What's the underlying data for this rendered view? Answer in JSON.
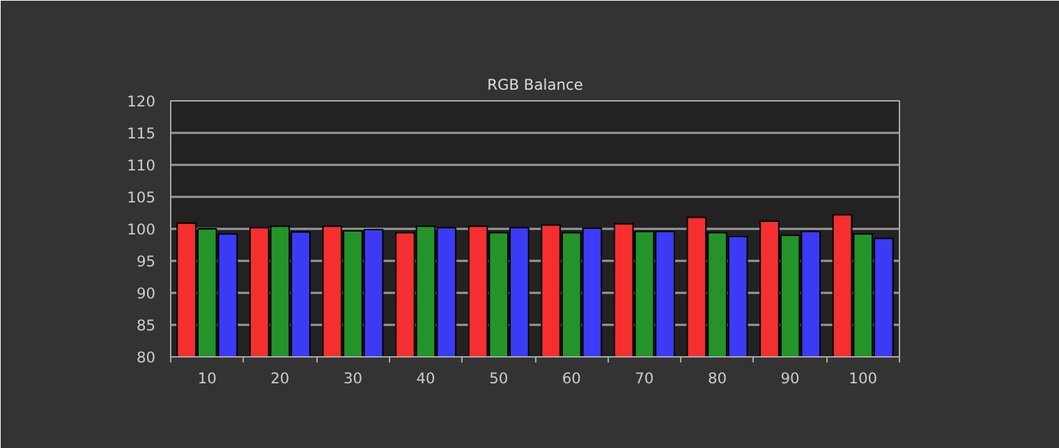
{
  "chart_data": {
    "type": "bar",
    "title": "RGB Balance",
    "categories": [
      "10",
      "20",
      "30",
      "40",
      "50",
      "60",
      "70",
      "80",
      "90",
      "100"
    ],
    "series": [
      {
        "color": "#f52f2f",
        "values": [
          100.9,
          100.2,
          100.4,
          99.4,
          100.4,
          100.6,
          100.8,
          101.8,
          101.2,
          102.2
        ]
      },
      {
        "color": "#24932a",
        "values": [
          100.0,
          100.4,
          99.7,
          100.4,
          99.4,
          99.4,
          99.6,
          99.4,
          99.0,
          99.2
        ]
      },
      {
        "color": "#3b3bf5",
        "values": [
          99.2,
          99.5,
          99.9,
          100.2,
          100.2,
          100.1,
          99.6,
          98.8,
          99.6,
          98.5
        ]
      }
    ],
    "ylim": [
      80,
      120
    ],
    "yticks": [
      80,
      85,
      90,
      95,
      100,
      105,
      110,
      115,
      120
    ],
    "grid": "y"
  }
}
